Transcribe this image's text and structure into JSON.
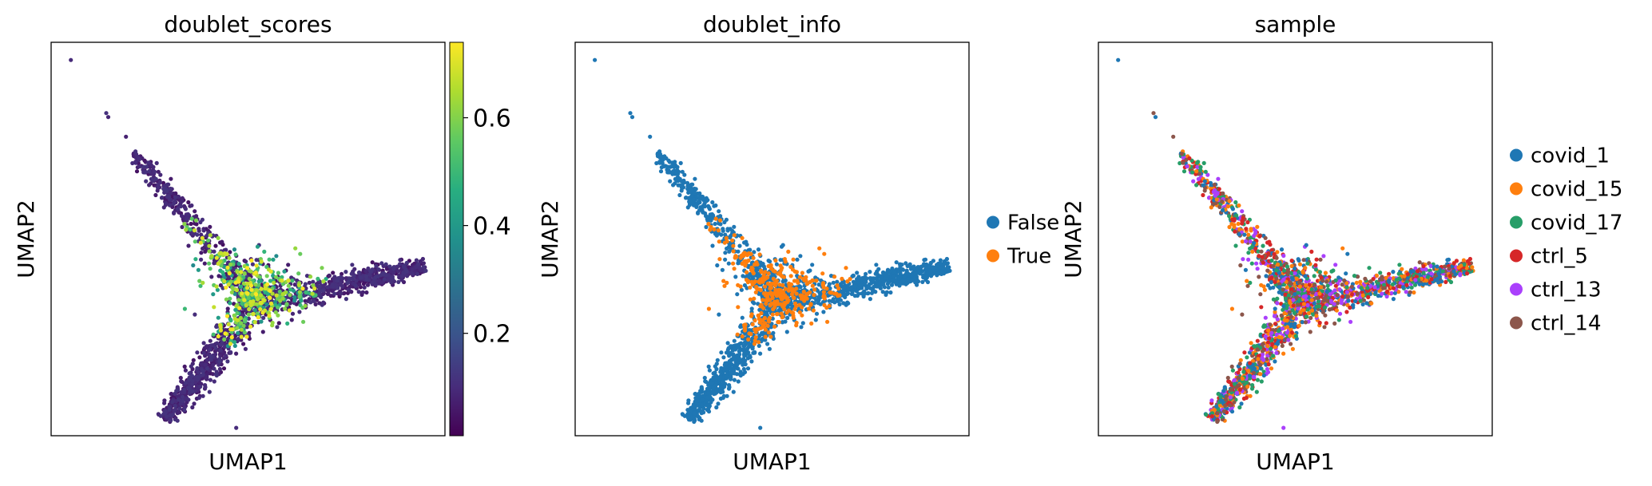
{
  "chart_data": [
    {
      "type": "scatter",
      "title": "doublet_scores",
      "xlabel": "UMAP1",
      "ylabel": "UMAP2",
      "xticks": false,
      "yticks": false,
      "grid": false,
      "colorbar": {
        "colormap": "viridis",
        "range": [
          0.01,
          0.74
        ],
        "ticks": [
          0.2,
          0.4,
          0.6
        ],
        "tick_labels": [
          "0.2",
          "0.4",
          "0.6"
        ],
        "stops": [
          "#440154",
          "#472d7b",
          "#3b528b",
          "#2c728e",
          "#21918c",
          "#28ae80",
          "#5ec962",
          "#addc30",
          "#fde725"
        ]
      }
    },
    {
      "type": "scatter",
      "title": "doublet_info",
      "xlabel": "UMAP1",
      "ylabel": "UMAP2",
      "xticks": false,
      "yticks": false,
      "grid": false,
      "legend": {
        "placement": "right",
        "entries": [
          {
            "label": "False",
            "color": "#1f77b4"
          },
          {
            "label": "True",
            "color": "#ff7f0e"
          }
        ]
      }
    },
    {
      "type": "scatter",
      "title": "sample",
      "xlabel": "UMAP1",
      "ylabel": "UMAP2",
      "xticks": false,
      "yticks": false,
      "grid": false,
      "legend": {
        "placement": "right",
        "entries": [
          {
            "label": "covid_1",
            "color": "#1f77b4"
          },
          {
            "label": "covid_15",
            "color": "#ff7f0e"
          },
          {
            "label": "covid_17",
            "color": "#279e68"
          },
          {
            "label": "ctrl_5",
            "color": "#d62728"
          },
          {
            "label": "ctrl_13",
            "color": "#aa40fc"
          },
          {
            "label": "ctrl_14",
            "color": "#8c564b"
          }
        ]
      }
    }
  ]
}
